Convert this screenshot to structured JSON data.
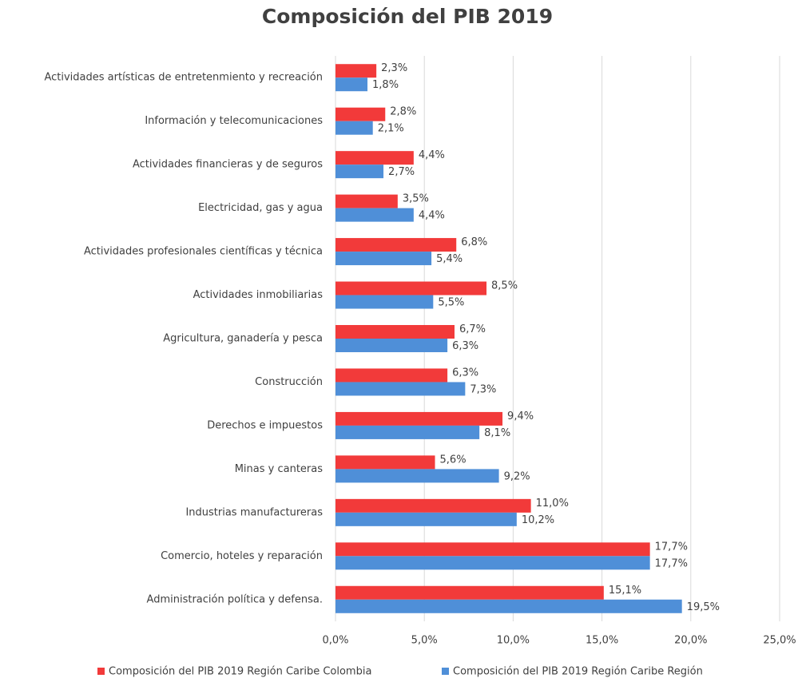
{
  "chart_data": {
    "type": "bar",
    "orientation": "horizontal",
    "title": "Composición del PIB 2019",
    "categories": [
      "Actividades artísticas de entretenmiento y recreación",
      "Información y telecomunicaciones",
      "Actividades financieras y de seguros",
      "Electricidad, gas y agua",
      "Actividades profesionales científicas y técnica",
      "Actividades inmobiliarias",
      "Agricultura, ganadería y pesca",
      "Construcción",
      "Derechos e impuestos",
      "Minas y canteras",
      "Industrias manufactureras",
      "Comercio, hoteles y reparación",
      "Administración política y defensa."
    ],
    "series": [
      {
        "name": "Composición del PIB 2019 Región Caribe Colombia",
        "color": "#f23a3a",
        "values": [
          2.3,
          2.8,
          4.4,
          3.5,
          6.8,
          8.5,
          6.7,
          6.3,
          9.4,
          5.6,
          11.0,
          17.7,
          15.1
        ],
        "value_labels": [
          "2,3%",
          "2,8%",
          "4,4%",
          "3,5%",
          "6,8%",
          "8,5%",
          "6,7%",
          "6,3%",
          "9,4%",
          "5,6%",
          "11,0%",
          "17,7%",
          "15,1%"
        ]
      },
      {
        "name": "Composición del PIB 2019 Región Caribe Región",
        "color": "#4f8fd8",
        "values": [
          1.8,
          2.1,
          2.7,
          4.4,
          5.4,
          5.5,
          6.3,
          7.3,
          8.1,
          9.2,
          10.2,
          17.7,
          19.5
        ],
        "value_labels": [
          "1,8%",
          "2,1%",
          "2,7%",
          "4,4%",
          "5,4%",
          "5,5%",
          "6,3%",
          "7,3%",
          "8,1%",
          "9,2%",
          "10,2%",
          "17,7%",
          "19,5%"
        ]
      }
    ],
    "xlim": [
      0,
      25
    ],
    "xticks": [
      {
        "value": 0,
        "label": "0,0%"
      },
      {
        "value": 5,
        "label": "5,0%"
      },
      {
        "value": 10,
        "label": "10,0%"
      },
      {
        "value": 15,
        "label": "15,0%"
      },
      {
        "value": 20,
        "label": "20,0%"
      },
      {
        "value": 25,
        "label": "25,0%"
      }
    ],
    "grid": true,
    "legend": "bottom"
  }
}
